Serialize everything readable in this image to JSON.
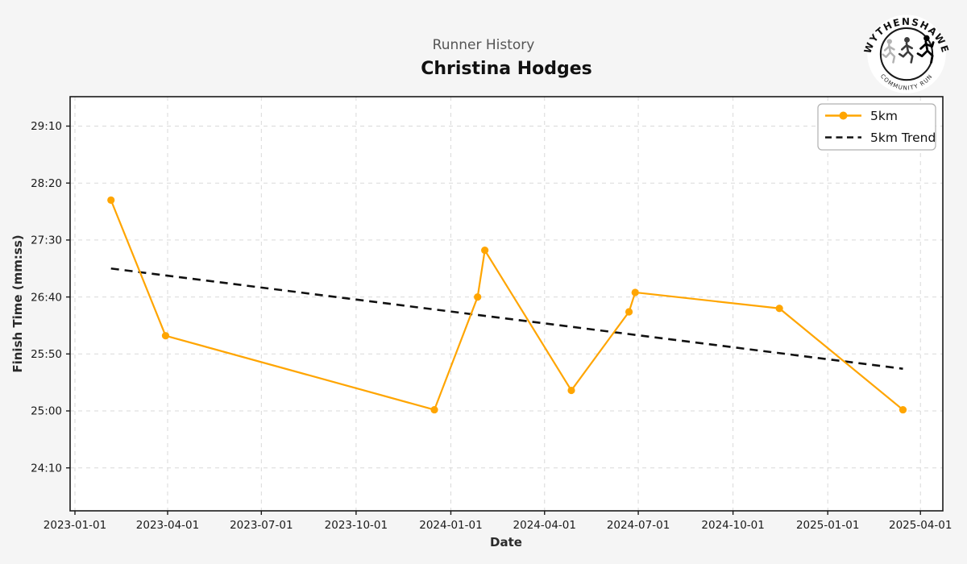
{
  "header": {
    "subtitle": "Runner History",
    "title": "Christina Hodges"
  },
  "logo": {
    "top_text": "WYTHENSHAWE",
    "bottom_text": "COMMUNITY RUN"
  },
  "colors": {
    "background": "#f5f5f5",
    "plot_background": "#ffffff",
    "grid": "#d9d9d9",
    "axis": "#1a1a1a",
    "series_5km": "#FFA500",
    "trend": "#111111",
    "legend_border": "#b0b0b0"
  },
  "chart_data": {
    "type": "line",
    "title": "Runner History",
    "runner_name": "Christina Hodges",
    "xlabel": "Date",
    "ylabel": "Finish Time (mm:ss)",
    "grid": true,
    "legend_position": "upper right",
    "x_tick_labels": [
      "2023-01-01",
      "2023-04-01",
      "2023-07-01",
      "2023-10-01",
      "2024-01-01",
      "2024-04-01",
      "2024-07-01",
      "2024-10-01",
      "2025-01-01",
      "2025-04-01"
    ],
    "y_tick_labels": [
      "29:10",
      "28:20",
      "27:30",
      "26:40",
      "25:50",
      "25:00",
      "24:10"
    ],
    "series": [
      {
        "name": "5km",
        "style": "solid-with-markers",
        "color": "#FFA500",
        "points": [
          {
            "date": "2023-02-05",
            "time": "28:05"
          },
          {
            "date": "2023-03-30",
            "time": "26:06"
          },
          {
            "date": "2023-12-16",
            "time": "25:01"
          },
          {
            "date": "2024-01-27",
            "time": "26:40"
          },
          {
            "date": "2024-02-03",
            "time": "27:21"
          },
          {
            "date": "2024-04-27",
            "time": "25:18"
          },
          {
            "date": "2024-06-22",
            "time": "26:27"
          },
          {
            "date": "2024-06-28",
            "time": "26:44"
          },
          {
            "date": "2024-11-15",
            "time": "26:30"
          },
          {
            "date": "2025-03-15",
            "time": "25:01"
          }
        ]
      },
      {
        "name": "5km Trend",
        "style": "dashed",
        "color": "#111111",
        "points": [
          {
            "date": "2023-02-05",
            "time": "27:05"
          },
          {
            "date": "2025-03-15",
            "time": "25:37"
          }
        ]
      }
    ]
  }
}
